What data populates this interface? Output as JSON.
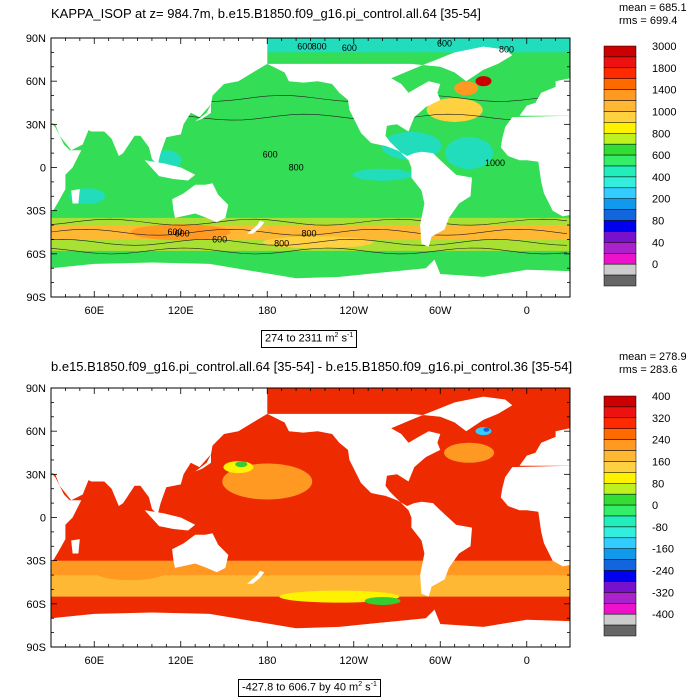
{
  "panels": [
    {
      "title": "KAPPA_ISOP at z= 984.7m, b.e15.B1850.f09_g16.pi_control.all.64 [35-54]",
      "mean_label": "mean = 685.1",
      "rms_label": "rms = 699.4",
      "range_label": "274 to 2311 m",
      "range_exp": "2",
      "range_unit2": " s",
      "range_exp2": "-1"
    },
    {
      "title": "b.e15.B1850.f09_g16.pi_control.all.64 [35-54] - b.e15.B1850.f09_g16.pi_control.36 [35-54]",
      "mean_label": "mean = 278.9",
      "rms_label": "rms = 283.6",
      "range_label": "-427.8 to 606.7 by 40 m",
      "range_exp": "2",
      "range_unit2": " s",
      "range_exp2": "-1"
    }
  ],
  "chart_data": [
    {
      "type": "heatmap",
      "title": "KAPPA_ISOP at z= 984.7m, b.e15.B1850.f09_g16.pi_control.all.64 [35-54]",
      "x_ticks": [
        "60E",
        "120E",
        "180",
        "120W",
        "60W",
        "0"
      ],
      "y_ticks": [
        "90N",
        "60N",
        "30N",
        "0",
        "30S",
        "60S",
        "90S"
      ],
      "contour_labels": [
        "600",
        "800",
        "600",
        "600",
        "800",
        "600",
        "800",
        "1000",
        "600",
        "800",
        "600",
        "800",
        "600"
      ],
      "colorbar": {
        "levels": [
          "3000",
          "1800",
          "1400",
          "1000",
          "800",
          "600",
          "400",
          "200",
          "80",
          "40",
          "0"
        ],
        "colors": [
          "#cc0000",
          "#ee1111",
          "#ff2a00",
          "#ff6a00",
          "#ff9922",
          "#ffb833",
          "#ffd040",
          "#fff200",
          "#bff020",
          "#33dd33",
          "#33ee66",
          "#22eebb",
          "#33eedd",
          "#33ccff",
          "#1199ee",
          "#1166dd",
          "#0000ee",
          "#7711cc",
          "#aa22cc",
          "#ee11cc",
          "#cccccc",
          "#666666"
        ]
      },
      "colors": {
        "land": "#ffffff",
        "ocean_base": "#33dd55",
        "high": "#ffb833",
        "low": "#22ddbb"
      },
      "mean": 685.1,
      "rms": 699.4,
      "min": 274,
      "max": 2311
    },
    {
      "type": "heatmap",
      "title": "b.e15.B1850.f09_g16.pi_control.all.64 [35-54] - b.e15.B1850.f09_g16.pi_control.36 [35-54]",
      "x_ticks": [
        "60E",
        "120E",
        "180",
        "120W",
        "60W",
        "0"
      ],
      "y_ticks": [
        "90N",
        "60N",
        "30N",
        "0",
        "30S",
        "60S",
        "90S"
      ],
      "colorbar": {
        "levels": [
          "400",
          "320",
          "240",
          "160",
          "80",
          "0",
          "-80",
          "-160",
          "-240",
          "-320",
          "-400"
        ],
        "colors": [
          "#cc0000",
          "#ee1111",
          "#ff2a00",
          "#ff6a00",
          "#ff9922",
          "#ffb833",
          "#ffd040",
          "#fff200",
          "#bff020",
          "#33dd33",
          "#33ee66",
          "#22eebb",
          "#33eedd",
          "#33ccff",
          "#1199ee",
          "#1166dd",
          "#0000ee",
          "#7711cc",
          "#aa22cc",
          "#ee11cc",
          "#cccccc",
          "#666666"
        ]
      },
      "colors": {
        "land": "#ffffff",
        "ocean_base": "#ee2a00",
        "high": "#ff8f20",
        "low": "#33cc33"
      },
      "mean": 278.9,
      "rms": 283.6,
      "min": -427.8,
      "max": 606.7,
      "interval": 40
    }
  ]
}
